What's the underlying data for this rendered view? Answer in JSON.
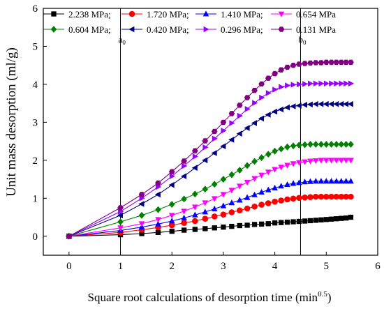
{
  "chart_data": {
    "type": "line",
    "title": "",
    "xlabel": "Square root calculations of desorption time (min",
    "xlabel_sup": "0.5",
    "xlabel_suffix": ")",
    "ylabel": "Unit mass desorption (ml/g)",
    "xlim": [
      -0.5,
      6
    ],
    "ylim": [
      -0.5,
      6
    ],
    "x_ticks": [
      0,
      1,
      2,
      3,
      4,
      5,
      6
    ],
    "y_ticks": [
      0,
      1,
      2,
      3,
      4,
      5,
      6
    ],
    "grid": false,
    "legend_placement": "top",
    "vlines": [
      {
        "x": 1.0,
        "label": "a",
        "sub": "0"
      },
      {
        "x": 4.5,
        "label": "b",
        "sub": "0"
      }
    ],
    "x": [
      0,
      1,
      1.414,
      1.732,
      2,
      2.236,
      2.449,
      2.646,
      2.828,
      3,
      3.162,
      3.317,
      3.464,
      3.606,
      3.742,
      3.873,
      4,
      4.123,
      4.243,
      4.359,
      4.472,
      4.583,
      4.69,
      4.796,
      4.899,
      5,
      5.099,
      5.196,
      5.292,
      5.385,
      5.477
    ],
    "series": [
      {
        "name": "2.238 MPa;",
        "color": "#000000",
        "marker": "square",
        "values": [
          0,
          0.04,
          0.07,
          0.1,
          0.13,
          0.16,
          0.18,
          0.2,
          0.22,
          0.24,
          0.26,
          0.28,
          0.29,
          0.31,
          0.32,
          0.33,
          0.35,
          0.36,
          0.37,
          0.38,
          0.39,
          0.4,
          0.41,
          0.42,
          0.43,
          0.44,
          0.45,
          0.46,
          0.47,
          0.48,
          0.5
        ]
      },
      {
        "name": "1.720 MPa;",
        "color": "#ff0000",
        "marker": "circle",
        "values": [
          0,
          0.1,
          0.17,
          0.23,
          0.29,
          0.35,
          0.4,
          0.46,
          0.52,
          0.57,
          0.63,
          0.68,
          0.73,
          0.78,
          0.83,
          0.87,
          0.91,
          0.94,
          0.97,
          0.99,
          1.01,
          1.02,
          1.03,
          1.04,
          1.04,
          1.04,
          1.04,
          1.04,
          1.04,
          1.04,
          1.04
        ]
      },
      {
        "name": "1.410 MPa;",
        "color": "#0000ff",
        "marker": "triangle-up",
        "values": [
          0,
          0.15,
          0.24,
          0.32,
          0.4,
          0.48,
          0.56,
          0.64,
          0.72,
          0.8,
          0.88,
          0.95,
          1.02,
          1.09,
          1.16,
          1.22,
          1.27,
          1.32,
          1.36,
          1.39,
          1.41,
          1.43,
          1.44,
          1.45,
          1.45,
          1.45,
          1.45,
          1.45,
          1.45,
          1.45,
          1.45
        ]
      },
      {
        "name": "0.654 MPa",
        "color": "#ff00ff",
        "marker": "triangle-down",
        "values": [
          0,
          0.22,
          0.33,
          0.44,
          0.55,
          0.66,
          0.77,
          0.88,
          0.99,
          1.1,
          1.21,
          1.32,
          1.42,
          1.52,
          1.61,
          1.69,
          1.76,
          1.82,
          1.87,
          1.91,
          1.94,
          1.96,
          1.98,
          1.99,
          2.0,
          2.0,
          2.0,
          2.0,
          2.0,
          2.0,
          2.0
        ]
      },
      {
        "name": "0.604 MPa;",
        "color": "#008000",
        "marker": "diamond",
        "values": [
          0,
          0.38,
          0.55,
          0.7,
          0.84,
          0.98,
          1.11,
          1.24,
          1.37,
          1.5,
          1.62,
          1.74,
          1.86,
          1.97,
          2.07,
          2.16,
          2.24,
          2.3,
          2.35,
          2.38,
          2.4,
          2.41,
          2.42,
          2.42,
          2.42,
          2.42,
          2.42,
          2.42,
          2.42,
          2.42,
          2.42
        ]
      },
      {
        "name": "0.420 MPa;",
        "color": "#000080",
        "marker": "triangle-left",
        "values": [
          0,
          0.55,
          0.85,
          1.1,
          1.35,
          1.58,
          1.8,
          2.0,
          2.19,
          2.37,
          2.54,
          2.7,
          2.85,
          2.98,
          3.1,
          3.2,
          3.28,
          3.34,
          3.39,
          3.42,
          3.44,
          3.46,
          3.47,
          3.48,
          3.48,
          3.48,
          3.48,
          3.48,
          3.48,
          3.48,
          3.48
        ]
      },
      {
        "name": "0.296 MPa;",
        "color": "#9900ff",
        "marker": "triangle-right",
        "values": [
          0,
          0.65,
          1.0,
          1.3,
          1.58,
          1.85,
          2.1,
          2.34,
          2.57,
          2.78,
          2.98,
          3.17,
          3.35,
          3.51,
          3.65,
          3.77,
          3.86,
          3.93,
          3.97,
          3.99,
          4.0,
          4.01,
          4.02,
          4.02,
          4.02,
          4.02,
          4.02,
          4.02,
          4.02,
          4.02,
          4.02
        ]
      },
      {
        "name": "0.131 MPa",
        "color": "#800080",
        "marker": "hexagon",
        "values": [
          0,
          0.75,
          1.1,
          1.4,
          1.7,
          1.98,
          2.25,
          2.51,
          2.76,
          3.0,
          3.23,
          3.45,
          3.65,
          3.84,
          4.01,
          4.16,
          4.28,
          4.38,
          4.45,
          4.5,
          4.53,
          4.55,
          4.56,
          4.57,
          4.57,
          4.58,
          4.58,
          4.58,
          4.58,
          4.58,
          4.58
        ]
      }
    ]
  }
}
